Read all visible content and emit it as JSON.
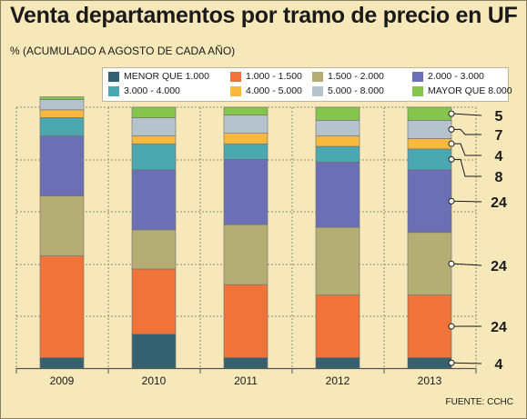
{
  "header": {
    "title": "Venta departamentos por tramo de precio en UF",
    "subtitle": "% (ACUMULADO A AGOSTO DE CADA AÑO)"
  },
  "source": "FUENTE: CCHC",
  "chart_data": {
    "type": "bar",
    "stacked": true,
    "title": "Venta departamentos por tramo de precio en UF",
    "subtitle": "% (ACUMULADO A AGOSTO DE CADA AÑO)",
    "categories": [
      "2009",
      "2010",
      "2011",
      "2012",
      "2013"
    ],
    "ylim": [
      0,
      100
    ],
    "grid": true,
    "legend_position": "top",
    "series": [
      {
        "name": "MENOR QUE 1.000",
        "color": "#35606f",
        "values": [
          4,
          13,
          4,
          4,
          4
        ]
      },
      {
        "name": "1.000 - 1.500",
        "color": "#f0733a",
        "values": [
          39,
          25,
          28,
          24,
          24
        ]
      },
      {
        "name": "1.500 - 2.000",
        "color": "#b5ae74",
        "values": [
          23,
          15,
          23,
          26,
          24
        ]
      },
      {
        "name": "2.000 - 3.000",
        "color": "#6c6fb3",
        "values": [
          23,
          23,
          25,
          25,
          24
        ]
      },
      {
        "name": "3.000 - 4.000",
        "color": "#4ca8b0",
        "values": [
          7,
          10,
          6,
          6,
          8
        ]
      },
      {
        "name": "4.000 - 5.000",
        "color": "#f8b93e",
        "values": [
          3,
          3,
          4,
          4,
          4
        ]
      },
      {
        "name": "5.000 - 8.000",
        "color": "#b7c3cc",
        "values": [
          4,
          7,
          7,
          6,
          7
        ]
      },
      {
        "name": "MAYOR QUE 8.000",
        "color": "#85c54b",
        "values": [
          1,
          4,
          3,
          5,
          5
        ]
      }
    ],
    "annotations": {
      "category": "2013",
      "labels": [
        "4",
        "24",
        "24",
        "24",
        "8",
        "4",
        "7",
        "5"
      ]
    }
  }
}
